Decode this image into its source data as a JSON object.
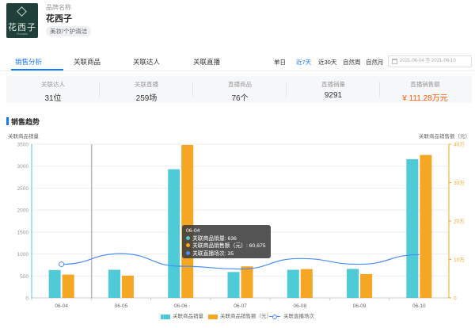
{
  "brand": {
    "caption": "品牌名称",
    "name": "花西子",
    "tag": "美妆/个护清洁",
    "logo_text": "花西子",
    "logo_sub": "Florasis"
  },
  "tabs": [
    {
      "label": "销售分析",
      "active": true
    },
    {
      "label": "关联商品",
      "active": false
    },
    {
      "label": "关联达人",
      "active": false
    },
    {
      "label": "关联直播",
      "active": false
    }
  ],
  "ranges": [
    {
      "label": "单日",
      "active": false
    },
    {
      "label": "近7天",
      "active": true
    },
    {
      "label": "近30天",
      "active": false
    },
    {
      "label": "自然周",
      "active": false
    },
    {
      "label": "自然月",
      "active": false
    }
  ],
  "date_range": "2021-06-04 至 2021-06-10",
  "stats": [
    {
      "label": "关联达人",
      "value": "31位"
    },
    {
      "label": "关联直播",
      "value": "259场"
    },
    {
      "label": "直播商品",
      "value": "76个"
    },
    {
      "label": "直播销量",
      "value": "9291"
    },
    {
      "label": "直播销售额",
      "value": "¥ 111.28万元"
    }
  ],
  "section_title": "销售趋势",
  "colors": {
    "accent": "#1677ff",
    "bar1": "#4ecbd7",
    "bar2": "#f5a623",
    "line": "#4b8df8",
    "money": "#ff5a00"
  },
  "chart_data": {
    "type": "bar",
    "categories": [
      "06-04",
      "06-05",
      "06-06",
      "06-07",
      "06-08",
      "06-09",
      "06-10"
    ],
    "left_axis": {
      "label": "关联商品销量",
      "ticks": [
        "0",
        "500",
        "1000",
        "1500",
        "2000",
        "2500",
        "3000",
        "3500"
      ],
      "ylim": [
        0,
        3500
      ]
    },
    "right_axis": {
      "label": "关联商品销售额（元）",
      "ticks": [
        "0",
        "10万",
        "20万",
        "30万",
        "40万"
      ],
      "ylim": [
        0,
        400000
      ]
    },
    "series": [
      {
        "name": "关联商品销量",
        "type": "bar",
        "axis": "left",
        "values": [
          636,
          640,
          2930,
          590,
          640,
          660,
          3160
        ]
      },
      {
        "name": "关联商品销售额（元）",
        "type": "bar",
        "axis": "right",
        "values": [
          60675,
          58000,
          398000,
          82000,
          75000,
          62000,
          372000
        ]
      },
      {
        "name": "关联直播场次",
        "type": "line",
        "values": [
          35,
          46,
          33,
          30,
          41,
          35,
          45
        ]
      }
    ],
    "line_range": [
      0,
      160
    ]
  },
  "tooltip": {
    "title": "06-04",
    "rows": [
      {
        "text": "关联商品销量: 636",
        "color": "#4ecbd7"
      },
      {
        "text": "关联商品销售额（元）: 60,675",
        "color": "#f5a623"
      },
      {
        "text": "关联直播场次: 35",
        "color": "#4b8df8"
      }
    ]
  }
}
